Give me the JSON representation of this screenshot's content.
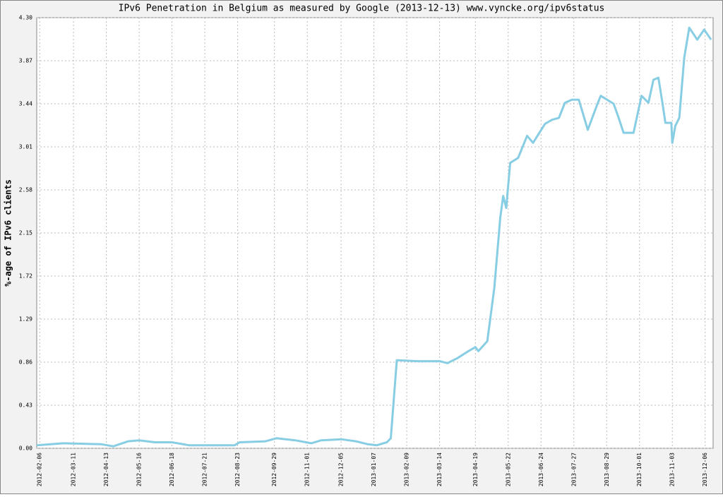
{
  "chart_data": {
    "type": "line",
    "title": "IPv6 Penetration in Belgium as measured by Google (2013-12-13) www.vyncke.org/ipv6status",
    "y_label": "%-age of IPv6 clients",
    "color": "#87cde3",
    "grid": true,
    "x": [
      "2012-02-03",
      "2012-03-01",
      "2012-04-08",
      "2012-04-20",
      "2012-05-05",
      "2012-05-16",
      "2012-06-01",
      "2012-06-18",
      "2012-07-05",
      "2012-08-20",
      "2012-08-25",
      "2012-09-20",
      "2012-10-01",
      "2012-10-20",
      "2012-11-05",
      "2012-11-15",
      "2012-12-05",
      "2012-12-20",
      "2013-01-01",
      "2013-01-10",
      "2013-01-20",
      "2013-01-24",
      "2013-01-30",
      "2013-02-20",
      "2013-03-14",
      "2013-03-22",
      "2013-04-01",
      "2013-04-12",
      "2013-04-19",
      "2013-04-22",
      "2013-05-01",
      "2013-05-08",
      "2013-05-14",
      "2013-05-17",
      "2013-05-20",
      "2013-05-24",
      "2013-06-01",
      "2013-06-10",
      "2013-06-16",
      "2013-06-28",
      "2013-07-05",
      "2013-07-12",
      "2013-07-18",
      "2013-07-25",
      "2013-08-01",
      "2013-08-10",
      "2013-08-19",
      "2013-08-23",
      "2013-09-05",
      "2013-09-10",
      "2013-09-15",
      "2013-09-25",
      "2013-10-03",
      "2013-10-10",
      "2013-10-15",
      "2013-10-20",
      "2013-10-24",
      "2013-10-27",
      "2013-11-02",
      "2013-11-03",
      "2013-11-06",
      "2013-11-10",
      "2013-11-15",
      "2013-11-20",
      "2013-11-28",
      "2013-12-05",
      "2013-12-12"
    ],
    "values": [
      0.03,
      0.05,
      0.04,
      0.02,
      0.07,
      0.08,
      0.06,
      0.06,
      0.03,
      0.03,
      0.06,
      0.07,
      0.1,
      0.08,
      0.05,
      0.08,
      0.09,
      0.07,
      0.04,
      0.03,
      0.06,
      0.1,
      0.88,
      0.87,
      0.87,
      0.85,
      0.9,
      0.97,
      1.01,
      0.97,
      1.07,
      1.6,
      2.3,
      2.52,
      2.4,
      2.85,
      2.9,
      3.12,
      3.05,
      3.24,
      3.28,
      3.3,
      3.45,
      3.48,
      3.48,
      3.18,
      3.42,
      3.52,
      3.44,
      3.3,
      3.15,
      3.15,
      3.52,
      3.45,
      3.68,
      3.7,
      3.45,
      3.25,
      3.25,
      3.05,
      3.22,
      3.3,
      3.9,
      4.2,
      4.08,
      4.18,
      4.08
    ],
    "xlim": [
      "2012-02-03",
      "2013-12-14"
    ],
    "xticks": [
      "2012-02-06",
      "2012-03-11",
      "2012-04-13",
      "2012-05-16",
      "2012-06-18",
      "2012-07-21",
      "2012-08-23",
      "2012-09-29",
      "2012-11-01",
      "2012-12-05",
      "2013-01-07",
      "2013-02-09",
      "2013-03-14",
      "2013-04-19",
      "2013-05-22",
      "2013-06-24",
      "2013-07-27",
      "2013-08-29",
      "2013-10-01",
      "2013-11-03",
      "2013-12-06"
    ],
    "ylim": [
      0,
      4.3
    ],
    "yticks": [
      {
        "value": 0,
        "label": "0.00"
      },
      0.43,
      0.86,
      1.29,
      1.72,
      2.15,
      2.58,
      3.01,
      3.44,
      3.87,
      {
        "value": 4.3,
        "label": "4.30"
      }
    ]
  }
}
